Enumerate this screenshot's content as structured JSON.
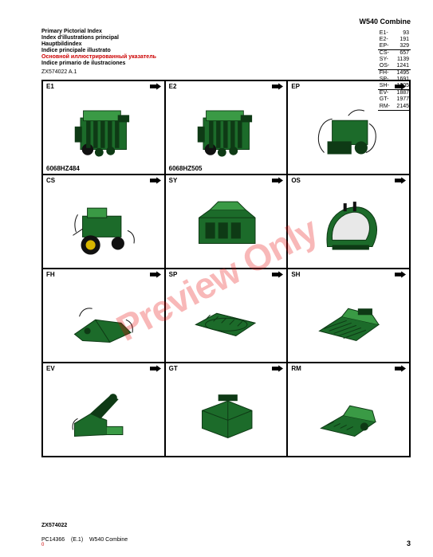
{
  "header": {
    "model": "W540  Combine"
  },
  "ref_table": [
    {
      "code": "E1-",
      "page": "93",
      "divider": false
    },
    {
      "code": "E2-",
      "page": "191",
      "divider": false
    },
    {
      "code": "EP-",
      "page": "329",
      "divider": true
    },
    {
      "code": "CS-",
      "page": "657",
      "divider": false
    },
    {
      "code": "SY-",
      "page": "1139",
      "divider": false
    },
    {
      "code": "OS-",
      "page": "1241",
      "divider": true
    },
    {
      "code": "FH-",
      "page": "1495",
      "divider": false
    },
    {
      "code": "SP-",
      "page": "1691",
      "divider": false
    },
    {
      "code": "SH-",
      "page": "1805",
      "divider": true
    },
    {
      "code": "EV-",
      "page": "1887",
      "divider": false
    },
    {
      "code": "GT-",
      "page": "1977",
      "divider": false
    },
    {
      "code": "RM-",
      "page": "2145",
      "divider": true
    }
  ],
  "titles": [
    {
      "text": "Primary Pictorial Index",
      "ru": false
    },
    {
      "text": "Index d'illustrations principal",
      "ru": false
    },
    {
      "text": "Hauptbildindex",
      "ru": false
    },
    {
      "text": "Indice principale illustrato",
      "ru": false
    },
    {
      "text": "Основной иллюстрированный указатель",
      "ru": true
    },
    {
      "text": "Indice primario de ilustraciones",
      "ru": false
    }
  ],
  "fig_ref_top": "ZX574022 A.1",
  "cells": [
    {
      "code": "E1",
      "caption": "6068HZ484",
      "part": "engine"
    },
    {
      "code": "E2",
      "caption": "6068HZ505",
      "part": "engine"
    },
    {
      "code": "EP",
      "caption": "",
      "part": "electrical"
    },
    {
      "code": "CS",
      "caption": "",
      "part": "chassis"
    },
    {
      "code": "SY",
      "caption": "",
      "part": "body"
    },
    {
      "code": "OS",
      "caption": "",
      "part": "cab"
    },
    {
      "code": "FH",
      "caption": "",
      "part": "feeder"
    },
    {
      "code": "SP",
      "caption": "",
      "part": "separator"
    },
    {
      "code": "SH",
      "caption": "",
      "part": "shoe"
    },
    {
      "code": "EV",
      "caption": "",
      "part": "elevator"
    },
    {
      "code": "GT",
      "caption": "",
      "part": "graintank"
    },
    {
      "code": "RM",
      "caption": "",
      "part": "residue"
    }
  ],
  "watermark": "Preview Only",
  "bottom_ref": "ZX574022",
  "footer": {
    "doc_id": "PC14366",
    "sec": "(E.1)",
    "model": "W540 Combine",
    "red": "0",
    "page": "3"
  },
  "palette": {
    "green_dark": "#0e3a15",
    "green_mid": "#1c6b2a",
    "green_light": "#3a9a45",
    "green_hilite": "#6bbd6e",
    "black": "#111",
    "gray": "#e8e8e8",
    "yellow": "#d7b500"
  }
}
